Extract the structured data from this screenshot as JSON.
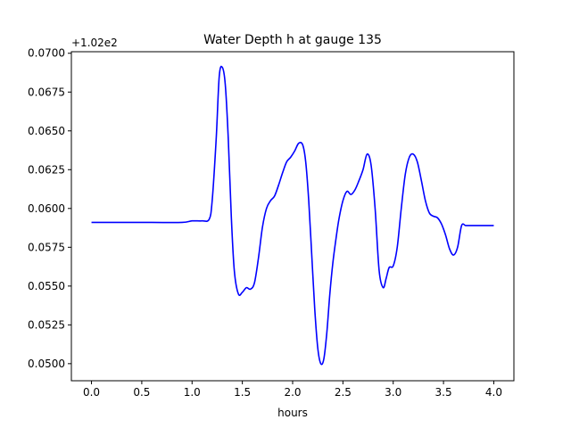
{
  "chart_data": {
    "type": "line",
    "title": "Water Depth h at gauge 135",
    "xlabel": "hours",
    "ylabel": "",
    "offset_label": "+1.02e2",
    "xlim": [
      -0.2,
      4.2
    ],
    "ylim": [
      0.0489,
      0.0701
    ],
    "x_ticks": [
      0.0,
      0.5,
      1.0,
      1.5,
      2.0,
      2.5,
      3.0,
      3.5,
      4.0
    ],
    "x_tick_labels": [
      "0.0",
      "0.5",
      "1.0",
      "1.5",
      "2.0",
      "2.5",
      "3.0",
      "3.5",
      "4.0"
    ],
    "y_ticks": [
      0.05,
      0.0525,
      0.055,
      0.0575,
      0.06,
      0.0625,
      0.065,
      0.0675,
      0.07
    ],
    "y_tick_labels": [
      "0.0500",
      "0.0525",
      "0.0550",
      "0.0575",
      "0.0600",
      "0.0625",
      "0.0650",
      "0.0675",
      "0.0700"
    ],
    "grid": false,
    "line_color": "#0000ff",
    "series": [
      {
        "x": [
          0.0,
          0.3,
          0.6,
          0.9,
          1.0,
          1.1,
          1.17,
          1.2,
          1.24,
          1.27,
          1.3,
          1.33,
          1.36,
          1.39,
          1.42,
          1.46,
          1.5,
          1.54,
          1.58,
          1.62,
          1.66,
          1.7,
          1.74,
          1.78,
          1.82,
          1.86,
          1.9,
          1.94,
          1.98,
          2.02,
          2.06,
          2.1,
          2.13,
          2.16,
          2.19,
          2.22,
          2.25,
          2.28,
          2.31,
          2.34,
          2.37,
          2.4,
          2.43,
          2.46,
          2.5,
          2.54,
          2.58,
          2.62,
          2.66,
          2.7,
          2.74,
          2.78,
          2.82,
          2.86,
          2.9,
          2.93,
          2.96,
          3.0,
          3.04,
          3.08,
          3.12,
          3.16,
          3.2,
          3.24,
          3.28,
          3.32,
          3.36,
          3.4,
          3.44,
          3.48,
          3.52,
          3.56,
          3.6,
          3.64,
          3.68,
          3.72,
          3.76,
          3.8,
          3.84,
          3.88,
          3.92,
          3.96,
          4.0
        ],
        "y": [
          0.0591,
          0.0591,
          0.0591,
          0.0591,
          0.0592,
          0.0592,
          0.0593,
          0.0605,
          0.0645,
          0.0685,
          0.0691,
          0.068,
          0.0645,
          0.0595,
          0.056,
          0.0545,
          0.0546,
          0.0549,
          0.0548,
          0.0552,
          0.0568,
          0.0588,
          0.06,
          0.0605,
          0.0608,
          0.0615,
          0.0623,
          0.063,
          0.0633,
          0.0637,
          0.0642,
          0.0641,
          0.063,
          0.0605,
          0.057,
          0.0535,
          0.051,
          0.05,
          0.0503,
          0.052,
          0.0545,
          0.0565,
          0.058,
          0.0593,
          0.0605,
          0.0611,
          0.0609,
          0.0612,
          0.0618,
          0.0625,
          0.0635,
          0.0628,
          0.06,
          0.056,
          0.0549,
          0.0555,
          0.0562,
          0.0563,
          0.0575,
          0.06,
          0.0622,
          0.0633,
          0.0635,
          0.063,
          0.0618,
          0.0605,
          0.0597,
          0.0595,
          0.0594,
          0.059,
          0.0583,
          0.0574,
          0.057,
          0.0575,
          0.0589,
          0.0589,
          0.0589,
          0.0589,
          0.0589,
          0.0589,
          0.0589,
          0.0589,
          0.0589
        ]
      }
    ]
  }
}
